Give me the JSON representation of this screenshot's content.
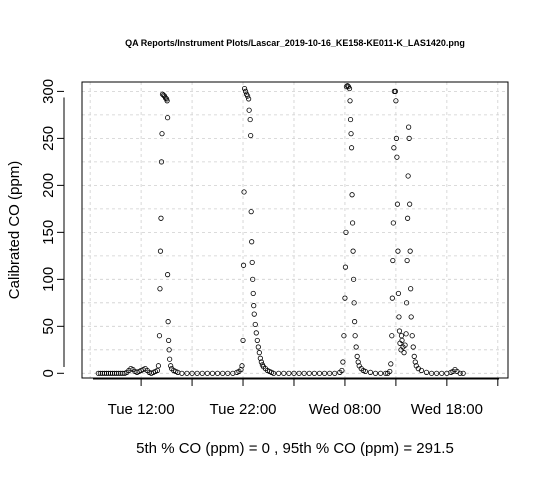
{
  "chart_data": {
    "type": "scatter",
    "title": "QA Reports/Instrument Plots/Lascar_2019-10-16_KE158-KE011-K_LAS1420.png",
    "xlabel": "",
    "ylabel": "Calibrated CO (ppm)",
    "subtitle": "5th % CO (ppm) =  0 , 95th % CO (ppm)  =  291.5",
    "x_unit": "hours since Tue 00:00",
    "xlim": [
      6.2,
      48.0
    ],
    "ylim": [
      -5,
      310
    ],
    "x_ticks": [
      {
        "value": 12,
        "label": "Tue 12:00"
      },
      {
        "value": 22,
        "label": "Tue 22:00"
      },
      {
        "value": 32,
        "label": "Wed 08:00"
      },
      {
        "value": 42,
        "label": "Wed 18:00"
      }
    ],
    "x_minor_ticks": [
      17,
      27,
      37,
      47
    ],
    "y_ticks": [
      {
        "value": 0,
        "label": "0"
      },
      {
        "value": 50,
        "label": "50"
      },
      {
        "value": 100,
        "label": "100"
      },
      {
        "value": 150,
        "label": "150"
      },
      {
        "value": 200,
        "label": "200"
      },
      {
        "value": 250,
        "label": "250"
      },
      {
        "value": 300,
        "label": "300"
      }
    ],
    "grid": true,
    "grid_style": "dashed light gray",
    "marker": "open circle",
    "series": [
      {
        "points": [
          [
            7.8,
            0
          ],
          [
            8.0,
            0
          ],
          [
            8.2,
            0
          ],
          [
            8.4,
            0
          ],
          [
            8.6,
            0
          ],
          [
            8.8,
            0
          ],
          [
            9.0,
            0
          ],
          [
            9.2,
            0
          ],
          [
            9.4,
            0
          ],
          [
            9.6,
            0
          ],
          [
            9.8,
            0
          ],
          [
            10.0,
            0
          ],
          [
            10.2,
            0
          ],
          [
            10.4,
            0
          ],
          [
            10.6,
            1
          ],
          [
            10.8,
            3
          ],
          [
            11.0,
            5
          ],
          [
            11.2,
            4
          ],
          [
            11.4,
            2
          ],
          [
            11.6,
            1
          ],
          [
            11.8,
            2
          ],
          [
            12.0,
            3
          ],
          [
            12.2,
            4
          ],
          [
            12.4,
            5
          ],
          [
            12.6,
            3
          ],
          [
            12.8,
            1
          ],
          [
            13.0,
            0
          ],
          [
            13.2,
            1
          ],
          [
            13.4,
            2
          ],
          [
            13.6,
            3
          ],
          [
            13.7,
            8
          ],
          [
            13.8,
            40
          ],
          [
            13.85,
            90
          ],
          [
            13.9,
            130
          ],
          [
            13.95,
            165
          ],
          [
            14.0,
            225
          ],
          [
            14.05,
            255
          ],
          [
            14.1,
            297
          ],
          [
            14.2,
            296
          ],
          [
            14.3,
            295
          ],
          [
            14.4,
            293
          ],
          [
            14.5,
            292
          ],
          [
            14.55,
            290
          ],
          [
            14.6,
            272
          ],
          [
            14.6,
            105
          ],
          [
            14.65,
            55
          ],
          [
            14.7,
            35
          ],
          [
            14.75,
            25
          ],
          [
            14.8,
            15
          ],
          [
            14.9,
            8
          ],
          [
            15.0,
            5
          ],
          [
            15.2,
            3
          ],
          [
            15.4,
            2
          ],
          [
            15.6,
            1
          ],
          [
            16.0,
            0
          ],
          [
            16.5,
            0
          ],
          [
            17.0,
            0
          ],
          [
            17.5,
            0
          ],
          [
            18.0,
            0
          ],
          [
            18.5,
            0
          ],
          [
            19.0,
            0
          ],
          [
            19.5,
            0
          ],
          [
            20.0,
            0
          ],
          [
            20.5,
            0
          ],
          [
            21.0,
            0
          ],
          [
            21.4,
            1
          ],
          [
            21.6,
            2
          ],
          [
            21.8,
            4
          ],
          [
            21.9,
            8
          ],
          [
            22.0,
            35
          ],
          [
            22.05,
            115
          ],
          [
            22.1,
            193
          ],
          [
            22.15,
            303
          ],
          [
            22.25,
            300
          ],
          [
            22.35,
            297
          ],
          [
            22.45,
            295
          ],
          [
            22.55,
            292
          ],
          [
            22.6,
            280
          ],
          [
            22.7,
            270
          ],
          [
            22.75,
            253
          ],
          [
            22.8,
            172
          ],
          [
            22.85,
            140
          ],
          [
            22.9,
            118
          ],
          [
            22.95,
            100
          ],
          [
            23.0,
            85
          ],
          [
            23.05,
            72
          ],
          [
            23.1,
            63
          ],
          [
            23.2,
            52
          ],
          [
            23.3,
            43
          ],
          [
            23.4,
            35
          ],
          [
            23.5,
            28
          ],
          [
            23.6,
            22
          ],
          [
            23.7,
            16
          ],
          [
            23.8,
            12
          ],
          [
            23.9,
            9
          ],
          [
            24.0,
            7
          ],
          [
            24.2,
            5
          ],
          [
            24.4,
            3
          ],
          [
            24.6,
            2
          ],
          [
            24.8,
            1
          ],
          [
            25.0,
            0
          ],
          [
            25.5,
            0
          ],
          [
            26.0,
            0
          ],
          [
            26.5,
            0
          ],
          [
            27.0,
            0
          ],
          [
            27.5,
            0
          ],
          [
            28.0,
            0
          ],
          [
            28.5,
            0
          ],
          [
            29.0,
            0
          ],
          [
            29.5,
            0
          ],
          [
            30.0,
            0
          ],
          [
            30.5,
            0
          ],
          [
            31.0,
            0
          ],
          [
            31.5,
            1
          ],
          [
            31.7,
            3
          ],
          [
            31.8,
            12
          ],
          [
            31.9,
            40
          ],
          [
            32.0,
            80
          ],
          [
            32.05,
            113
          ],
          [
            32.1,
            150
          ],
          [
            32.15,
            305
          ],
          [
            32.25,
            306
          ],
          [
            32.35,
            305
          ],
          [
            32.45,
            303
          ],
          [
            32.5,
            290
          ],
          [
            32.55,
            270
          ],
          [
            32.6,
            255
          ],
          [
            32.65,
            240
          ],
          [
            32.7,
            190
          ],
          [
            32.75,
            160
          ],
          [
            32.8,
            130
          ],
          [
            32.85,
            100
          ],
          [
            32.9,
            75
          ],
          [
            32.95,
            55
          ],
          [
            33.0,
            40
          ],
          [
            33.1,
            28
          ],
          [
            33.2,
            18
          ],
          [
            33.3,
            12
          ],
          [
            33.4,
            8
          ],
          [
            33.6,
            5
          ],
          [
            33.8,
            3
          ],
          [
            34.0,
            2
          ],
          [
            34.5,
            1
          ],
          [
            35.0,
            0
          ],
          [
            35.5,
            0
          ],
          [
            36.0,
            0
          ],
          [
            36.2,
            0
          ],
          [
            36.4,
            2
          ],
          [
            36.5,
            10
          ],
          [
            36.6,
            40
          ],
          [
            36.65,
            80
          ],
          [
            36.7,
            120
          ],
          [
            36.75,
            160
          ],
          [
            36.8,
            240
          ],
          [
            36.85,
            300
          ],
          [
            36.95,
            300
          ],
          [
            37.0,
            290
          ],
          [
            37.05,
            250
          ],
          [
            37.1,
            230
          ],
          [
            37.15,
            180
          ],
          [
            37.2,
            130
          ],
          [
            37.25,
            85
          ],
          [
            37.3,
            60
          ],
          [
            37.35,
            45
          ],
          [
            37.4,
            32
          ],
          [
            37.5,
            25
          ],
          [
            37.55,
            40
          ],
          [
            37.6,
            35
          ],
          [
            37.7,
            28
          ],
          [
            37.8,
            22
          ],
          [
            37.9,
            30
          ],
          [
            38.0,
            42
          ],
          [
            38.05,
            75
          ],
          [
            38.1,
            120
          ],
          [
            38.15,
            165
          ],
          [
            38.2,
            210
          ],
          [
            38.25,
            262
          ],
          [
            38.3,
            250
          ],
          [
            38.35,
            180
          ],
          [
            38.4,
            130
          ],
          [
            38.45,
            90
          ],
          [
            38.5,
            60
          ],
          [
            38.6,
            40
          ],
          [
            38.7,
            28
          ],
          [
            38.8,
            18
          ],
          [
            38.9,
            12
          ],
          [
            39.0,
            8
          ],
          [
            39.2,
            5
          ],
          [
            39.5,
            3
          ],
          [
            40.0,
            1
          ],
          [
            40.5,
            0
          ],
          [
            41.0,
            0
          ],
          [
            41.5,
            0
          ],
          [
            42.0,
            0
          ],
          [
            42.4,
            1
          ],
          [
            42.6,
            2
          ],
          [
            42.8,
            4
          ],
          [
            43.0,
            2
          ],
          [
            43.3,
            0
          ],
          [
            43.6,
            0
          ]
        ]
      }
    ]
  }
}
